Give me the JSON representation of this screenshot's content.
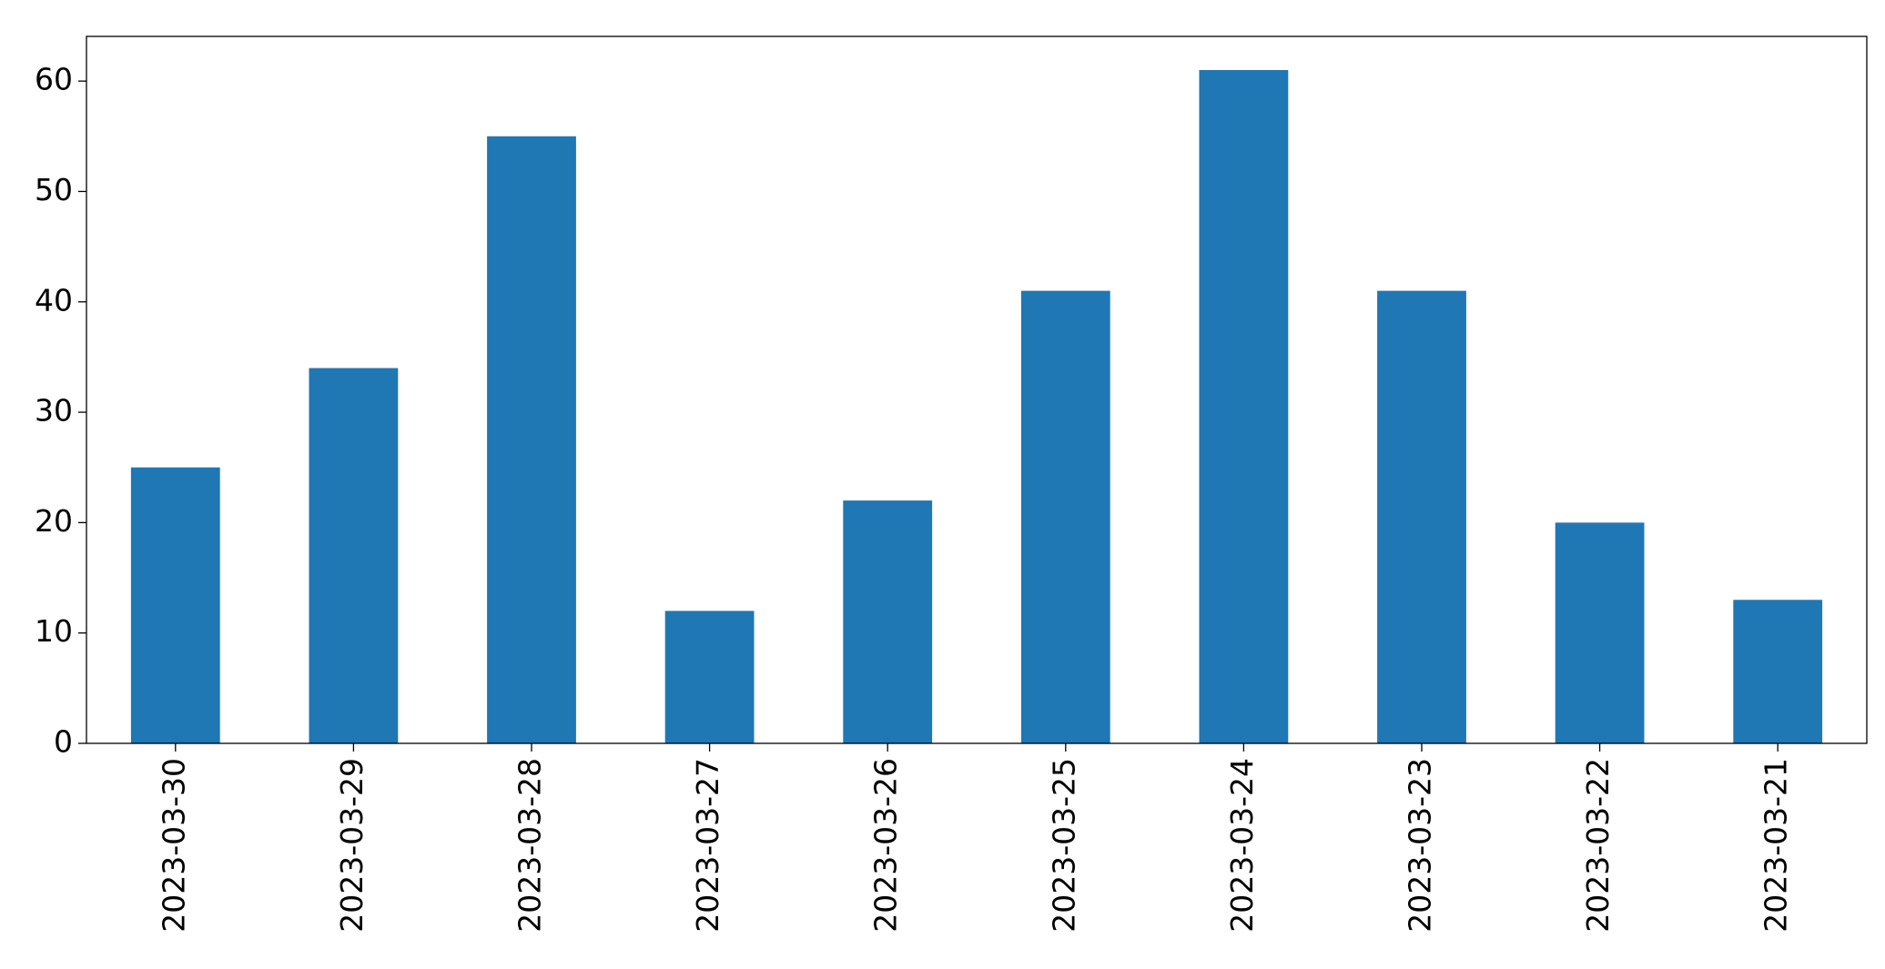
{
  "chart_data": {
    "type": "bar",
    "categories": [
      "2023-03-30",
      "2023-03-29",
      "2023-03-28",
      "2023-03-27",
      "2023-03-26",
      "2023-03-25",
      "2023-03-24",
      "2023-03-23",
      "2023-03-22",
      "2023-03-21"
    ],
    "values": [
      25,
      34,
      55,
      12,
      22,
      41,
      61,
      41,
      20,
      13
    ],
    "color": "#1f77b4",
    "ylim": [
      0,
      64.05
    ],
    "yticks": [
      0,
      10,
      20,
      30,
      40,
      50,
      60
    ],
    "grid": false
  }
}
